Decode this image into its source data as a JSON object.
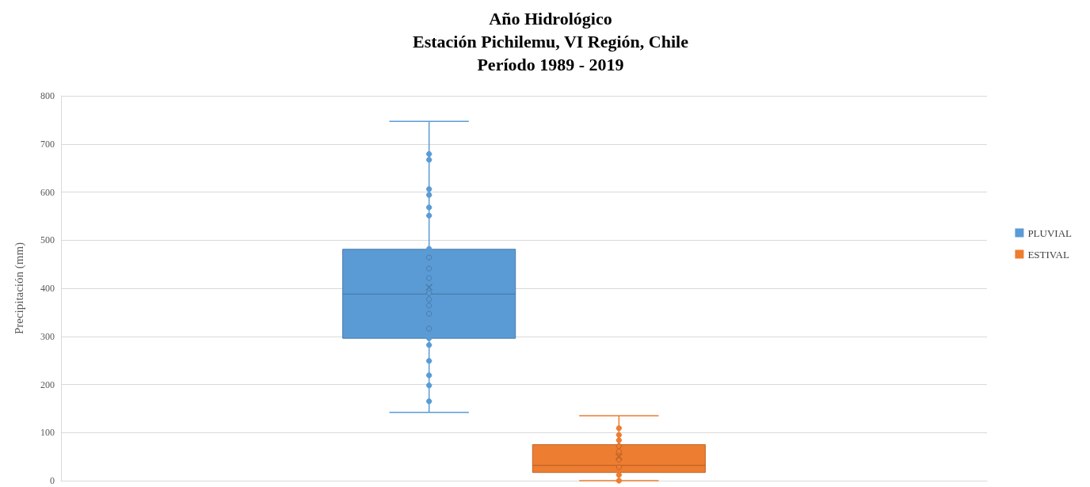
{
  "chart_data": {
    "type": "box",
    "title": "Año Hidrológico\nEstación Pichilemu, VI Región, Chile\nPeríodo 1989 - 2019",
    "ylabel": "Precipitación (mm)",
    "categories": [
      null
    ],
    "series": [
      {
        "name": "PLUVIAL",
        "color": "#5b9bd5",
        "boxes": [
          {
            "low": 142,
            "q1": 296,
            "median": 388,
            "q3": 481,
            "high": 747,
            "mean": 402,
            "outliers": [
              679,
              667,
              606,
              594,
              568,
              551,
              482,
              464,
              441,
              421,
              390,
              377,
              364,
              347,
              316,
              296,
              282,
              249,
              219,
              198,
              165
            ]
          }
        ]
      },
      {
        "name": "ESTIVAL",
        "color": "#ed7d31",
        "boxes": [
          {
            "low": 0,
            "q1": 17,
            "median": 32,
            "q3": 75,
            "high": 135,
            "mean": 50,
            "outliers": [
              109,
              95,
              84,
              72,
              61,
              44,
              28,
              12,
              0
            ]
          }
        ]
      }
    ],
    "ylim": [
      0,
      800
    ],
    "yticks": [
      0,
      100,
      200,
      300,
      400,
      500,
      600,
      700,
      800
    ],
    "grid": "y",
    "legend": "right",
    "marker": "circle"
  }
}
